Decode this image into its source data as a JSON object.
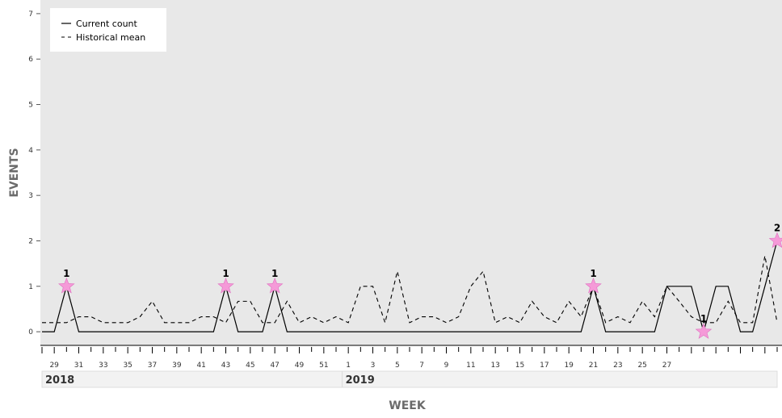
{
  "chart_data": {
    "type": "line",
    "ylabel": "EVENTS",
    "xlabel": "WEEK",
    "ylim": [
      -0.3,
      7.3
    ],
    "yticks": [
      "0",
      "1",
      "2",
      "3",
      "4",
      "5",
      "6",
      "7"
    ],
    "grid": false,
    "legend_position": "top-left",
    "x_tick_labels": [
      "29",
      "31",
      "33",
      "35",
      "37",
      "39",
      "41",
      "43",
      "45",
      "47",
      "49",
      "51",
      "1",
      "3",
      "5",
      "7",
      "9",
      "11",
      "13",
      "15",
      "17",
      "19",
      "21",
      "23",
      "25",
      "27"
    ],
    "years": [
      "2018",
      "2019"
    ],
    "series": [
      {
        "name": "Current count",
        "style": "solid",
        "color": "#000000",
        "values": [
          0,
          0,
          1,
          0,
          0,
          0,
          0,
          0,
          0,
          0,
          0,
          0,
          0,
          0,
          0,
          1,
          0,
          0,
          0,
          1,
          0,
          0,
          0,
          0,
          0,
          0,
          0,
          0,
          0,
          0,
          0,
          0,
          0,
          0,
          0,
          0,
          0,
          0,
          0,
          0,
          0,
          0,
          0,
          0,
          0,
          1,
          0,
          0,
          0,
          0,
          0,
          1,
          1,
          1,
          0,
          1,
          1,
          0,
          0,
          1,
          2
        ]
      },
      {
        "name": "Historical mean",
        "style": "dashed",
        "color": "#000000",
        "values": [
          0.2,
          0.2,
          0.2,
          0.33,
          0.33,
          0.2,
          0.2,
          0.2,
          0.33,
          0.67,
          0.2,
          0.2,
          0.2,
          0.33,
          0.33,
          0.2,
          0.67,
          0.67,
          0.2,
          0.2,
          0.67,
          0.2,
          0.33,
          0.2,
          0.33,
          0.2,
          1,
          1,
          0.2,
          1.33,
          0.2,
          0.33,
          0.33,
          0.2,
          0.33,
          1,
          1.33,
          0.2,
          0.33,
          0.2,
          0.67,
          0.33,
          0.2,
          0.67,
          0.33,
          1,
          0.2,
          0.33,
          0.2,
          0.67,
          0.33,
          1,
          0.67,
          0.33,
          0.2,
          0.2,
          0.67,
          0.2,
          0.2,
          1.67,
          0.2
        ]
      }
    ],
    "annotations": [
      {
        "label": "1",
        "value": 1
      },
      {
        "label": "1",
        "value": 1
      },
      {
        "label": "1",
        "value": 1
      },
      {
        "label": "1",
        "value": 1
      },
      {
        "label": "1",
        "value": 1
      },
      {
        "label": "2",
        "value": 2
      }
    ],
    "colors": {
      "plot_background": "#e8e8e8",
      "marker": "#f59ad8",
      "marker_stroke": "#e070c0",
      "axis_title": "#6b6b6b",
      "year_band": "#f2f2f2"
    }
  }
}
